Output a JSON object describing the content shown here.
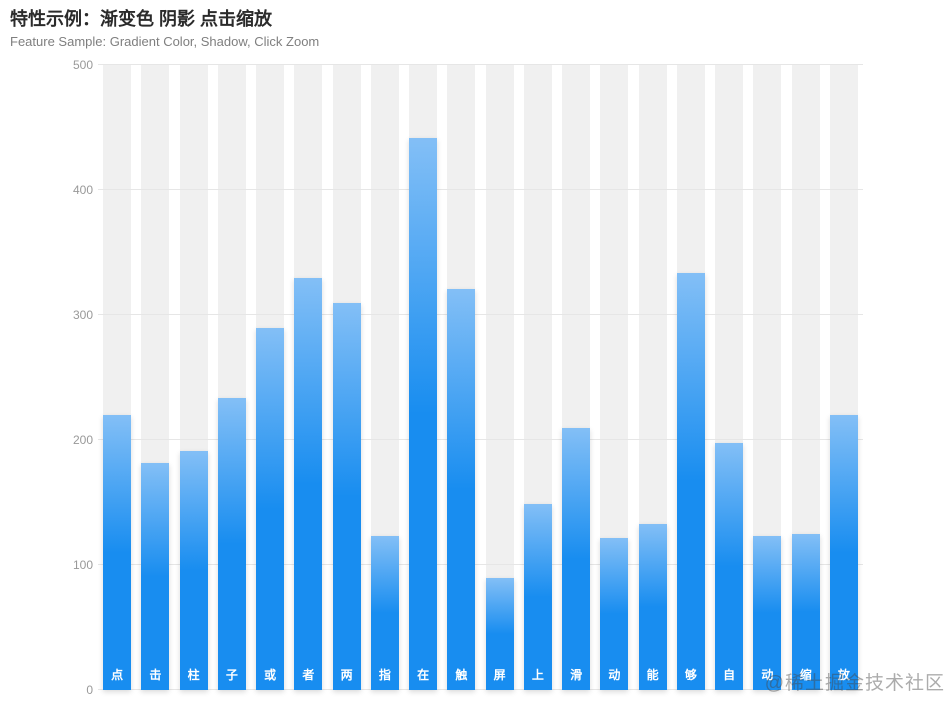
{
  "header": {
    "title": "特性示例：渐变色 阴影 点击缩放",
    "subtitle": "Feature Sample: Gradient Color, Shadow, Click Zoom"
  },
  "watermark": {
    "text": "@稀土掘金技术社区"
  },
  "chart_data": {
    "type": "bar",
    "title": "特性示例：渐变色 阴影 点击缩放",
    "subtitle": "Feature Sample: Gradient Color, Shadow, Click Zoom",
    "categories": [
      "点",
      "击",
      "柱",
      "子",
      "或",
      "者",
      "两",
      "指",
      "在",
      "触",
      "屏",
      "上",
      "滑",
      "动",
      "能",
      "够",
      "自",
      "动",
      "缩",
      "放"
    ],
    "values": [
      220,
      182,
      191,
      234,
      290,
      330,
      310,
      123,
      442,
      321,
      90,
      149,
      210,
      122,
      133,
      334,
      198,
      123,
      125,
      220
    ],
    "xlabel": "",
    "ylabel": "",
    "ylim": [
      0,
      500
    ],
    "yticks": [
      0,
      100,
      200,
      300,
      400,
      500
    ],
    "grid": true,
    "legend": false,
    "x_label_position": "inside-bottom",
    "x_label_color": "#ffffff",
    "axis_label_color": "#999999",
    "gridline_color": "#e6e6e6",
    "bar_background": "rgba(180,180,180,0.2)",
    "bar_gradient": {
      "top": "#83bff6",
      "mid": "#188df0",
      "bottom": "#188df0"
    }
  }
}
